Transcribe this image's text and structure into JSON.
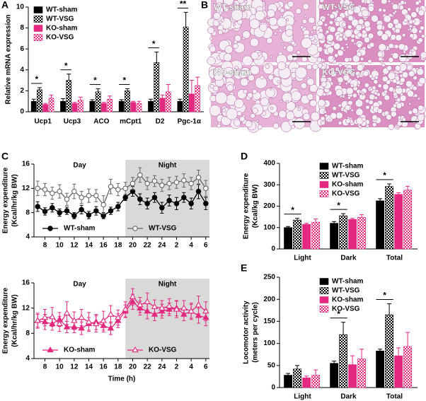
{
  "chart_data": [
    {
      "type": "bar",
      "panel": "A",
      "ylabel": "Relative mRNA expression",
      "categories": [
        "Ucp1",
        "Ucp3",
        "ACO",
        "mCpt1",
        "D2",
        "Pgc-1α"
      ],
      "ylim": [
        0,
        10
      ],
      "yticks": [
        0,
        2,
        4,
        6,
        8,
        10
      ],
      "series": [
        {
          "name": "WT-sham",
          "color": "#000000",
          "values": [
            1,
            1,
            1,
            1,
            1,
            1
          ],
          "errors": [
            0.2,
            0.25,
            0.15,
            0.15,
            0.2,
            0.2
          ]
        },
        {
          "name": "WT-VSG",
          "color": "#000000",
          "pattern": "checker",
          "values": [
            2.1,
            3.0,
            1.9,
            2.0,
            4.7,
            8.1
          ],
          "errors": [
            0.2,
            0.6,
            0.3,
            0.2,
            1.0,
            1.4
          ]
        },
        {
          "name": "KO-sham",
          "color": "#e3287f",
          "values": [
            0.7,
            0.8,
            0.8,
            0.9,
            1.3,
            1.7
          ],
          "errors": [
            0.1,
            0.1,
            0.1,
            0.1,
            0.3,
            1.3
          ]
        },
        {
          "name": "KO-VSG",
          "color": "#e3287f",
          "pattern": "checker",
          "values": [
            1.3,
            1.1,
            1.2,
            0.8,
            1.9,
            2.5
          ],
          "errors": [
            0.3,
            0.3,
            0.3,
            0.2,
            0.7,
            0.8
          ]
        }
      ],
      "annotations": [
        {
          "text": "*",
          "category": "Ucp1"
        },
        {
          "text": "*",
          "category": "Ucp3"
        },
        {
          "text": "*",
          "category": "ACO"
        },
        {
          "text": "*",
          "category": "mCpt1"
        },
        {
          "text": "*",
          "category": "D2"
        },
        {
          "text": "**",
          "category": "Pgc-1α"
        }
      ]
    },
    {
      "type": "line",
      "panel": "C",
      "ylabel": [
        "Energy expenditure",
        "(Kcal/hr/kg BW)"
      ],
      "x": [
        7,
        8,
        9,
        10,
        11,
        12,
        13,
        14,
        15,
        16,
        17,
        18,
        19,
        20,
        21,
        22,
        23,
        24,
        25,
        26,
        27,
        28,
        29,
        30
      ],
      "xlim": [
        6.5,
        30.5
      ],
      "xticks": [
        8,
        10,
        12,
        14,
        16,
        18,
        20,
        22,
        24,
        {
          "value": 26,
          "label": "2"
        },
        {
          "value": 28,
          "label": "4"
        },
        {
          "value": 30,
          "label": "6"
        }
      ],
      "ylim": [
        4,
        16
      ],
      "yticks": [
        4,
        8,
        12,
        16
      ],
      "regions": [
        {
          "label": "Day",
          "from": 6.5,
          "to": 19
        },
        {
          "label": "Night",
          "from": 19,
          "to": 30.5,
          "shaded": true
        }
      ],
      "series": [
        {
          "name": "WT-sham",
          "color": "#000000",
          "marker": "circle",
          "filled": true,
          "values": [
            9.0,
            8.2,
            8.8,
            8.0,
            8.3,
            7.5,
            8.5,
            7.6,
            8.3,
            7.5,
            8.3,
            9.0,
            10.5,
            11.5,
            10.2,
            9.5,
            10.5,
            8.8,
            10.0,
            9.5,
            10.5,
            9.5,
            11.5,
            9.5
          ],
          "errors": [
            0.8,
            0.6,
            0.7,
            0.6,
            0.6,
            0.5,
            0.7,
            0.6,
            0.7,
            0.5,
            0.6,
            0.7,
            0.5,
            0.8,
            0.9,
            0.9,
            0.8,
            0.9,
            0.9,
            1.0,
            0.8,
            0.9,
            1.2,
            1.0
          ]
        },
        {
          "name": "WT-VSG",
          "color": "#666666",
          "marker": "circle",
          "filled": false,
          "values": [
            12.0,
            11.8,
            11.2,
            11.5,
            10.2,
            11.5,
            10.5,
            10.8,
            10.8,
            9.3,
            12.3,
            11.8,
            12.0,
            12.8,
            14.2,
            12.8,
            13.2,
            12.5,
            12.8,
            13.0,
            13.3,
            12.8,
            13.8,
            12.0
          ],
          "errors": [
            1.2,
            1.0,
            1.0,
            1.1,
            1.0,
            1.2,
            1.0,
            1.1,
            1.0,
            1.5,
            1.2,
            1.0,
            1.0,
            1.0,
            1.2,
            1.0,
            0.9,
            1.0,
            1.0,
            1.0,
            1.1,
            1.0,
            1.2,
            1.3
          ]
        }
      ]
    },
    {
      "type": "line",
      "ylabel": [
        "Energy expenditure",
        "(Kcal/hr/kg BW)"
      ],
      "xlabel": "Time (h)",
      "x": [
        7,
        8,
        9,
        10,
        11,
        12,
        13,
        14,
        15,
        16,
        17,
        18,
        19,
        20,
        21,
        22,
        23,
        24,
        25,
        26,
        27,
        28,
        29,
        30
      ],
      "xlim": [
        6.5,
        30.5
      ],
      "xticks": [
        8,
        10,
        12,
        14,
        16,
        18,
        20,
        22,
        24,
        {
          "value": 26,
          "label": "2"
        },
        {
          "value": 28,
          "label": "4"
        },
        {
          "value": 30,
          "label": "6"
        }
      ],
      "ylim": [
        4,
        16
      ],
      "yticks": [
        4,
        8,
        12,
        16
      ],
      "regions": [
        {
          "label": "Day",
          "from": 6.5,
          "to": 19
        },
        {
          "label": "Night",
          "from": 19,
          "to": 30.5,
          "shaded": true
        }
      ],
      "series": [
        {
          "name": "KO-sham",
          "color": "#e3287f",
          "marker": "triangle",
          "filled": true,
          "values": [
            10.0,
            9.8,
            9.5,
            10.2,
            9.0,
            9.0,
            8.8,
            9.5,
            9.8,
            9.2,
            8.8,
            10.0,
            11.5,
            13.0,
            12.0,
            11.5,
            11.0,
            11.5,
            11.8,
            12.0,
            11.0,
            11.5,
            10.8,
            10.5
          ],
          "errors": [
            1.0,
            1.2,
            1.0,
            1.1,
            0.9,
            0.9,
            1.0,
            1.0,
            1.2,
            1.0,
            1.0,
            1.1,
            1.0,
            1.2,
            1.1,
            1.2,
            1.0,
            1.1,
            1.0,
            1.2,
            1.0,
            1.1,
            1.2,
            1.3
          ]
        },
        {
          "name": "KO-VSG",
          "color": "#e3287f",
          "marker": "triangle",
          "filled": false,
          "values": [
            10.0,
            10.5,
            10.6,
            9.5,
            11.2,
            10.0,
            10.5,
            9.8,
            9.5,
            10.0,
            11.0,
            10.5,
            11.8,
            13.8,
            12.5,
            13.0,
            12.2,
            12.0,
            12.3,
            11.8,
            12.0,
            11.5,
            12.5,
            11.5
          ],
          "errors": [
            1.2,
            1.3,
            1.5,
            1.2,
            1.8,
            1.4,
            1.3,
            1.5,
            1.3,
            1.5,
            1.4,
            1.2,
            1.2,
            1.3,
            1.2,
            1.4,
            1.1,
            1.2,
            1.2,
            1.3,
            1.2,
            1.3,
            1.4,
            1.5
          ]
        }
      ]
    },
    {
      "type": "bar",
      "panel": "D",
      "ylabel": [
        "Energy expenditure",
        "(Kcal/kg BW)"
      ],
      "categories": [
        "Light",
        "Dark",
        "Total"
      ],
      "ylim": [
        0,
        400
      ],
      "yticks": [
        0,
        100,
        200,
        300,
        400
      ],
      "series": [
        {
          "name": "WT-sham",
          "color": "#000000",
          "values": [
            100,
            120,
            225
          ],
          "errors": [
            5,
            8,
            10
          ]
        },
        {
          "name": "WT-VSG",
          "color": "#000000",
          "pattern": "checker",
          "values": [
            135,
            155,
            292
          ],
          "errors": [
            8,
            10,
            12
          ]
        },
        {
          "name": "KO-sham",
          "color": "#e3287f",
          "values": [
            115,
            138,
            255
          ],
          "errors": [
            5,
            5,
            8
          ]
        },
        {
          "name": "KO-VSG",
          "color": "#e3287f",
          "pattern": "checker",
          "values": [
            125,
            148,
            275
          ],
          "errors": [
            15,
            12,
            18
          ]
        }
      ],
      "annotations": [
        {
          "text": "*",
          "category": "Light"
        },
        {
          "text": "*",
          "category": "Dark"
        },
        {
          "text": "*",
          "category": "Total"
        }
      ]
    },
    {
      "type": "bar",
      "panel": "E",
      "ylabel": [
        "Locomotor activity",
        "(meters per cycle)"
      ],
      "categories": [
        "Light",
        "Dark",
        "Total"
      ],
      "ylim": [
        0,
        250
      ],
      "yticks": [
        0,
        50,
        100,
        150,
        200,
        250
      ],
      "series": [
        {
          "name": "WT-sham",
          "color": "#000000",
          "values": [
            28,
            55,
            83
          ],
          "errors": [
            4,
            5,
            4
          ]
        },
        {
          "name": "WT-VSG",
          "color": "#000000",
          "pattern": "checker",
          "values": [
            42,
            120,
            165
          ],
          "errors": [
            8,
            28,
            25
          ]
        },
        {
          "name": "KO-sham",
          "color": "#e3287f",
          "values": [
            22,
            52,
            72
          ],
          "errors": [
            4,
            20,
            18
          ]
        },
        {
          "name": "KO-VSG",
          "color": "#e3287f",
          "pattern": "checker",
          "values": [
            28,
            65,
            93
          ],
          "errors": [
            12,
            22,
            32
          ]
        }
      ],
      "annotations": [
        {
          "text": "*",
          "category": "Dark"
        },
        {
          "text": "*",
          "category": "Total"
        }
      ]
    },
    {
      "type": "image",
      "panel": "B",
      "labels": [
        "WT-sham",
        "WT-VSG",
        "KO-sham",
        "KO-VSG"
      ]
    }
  ]
}
